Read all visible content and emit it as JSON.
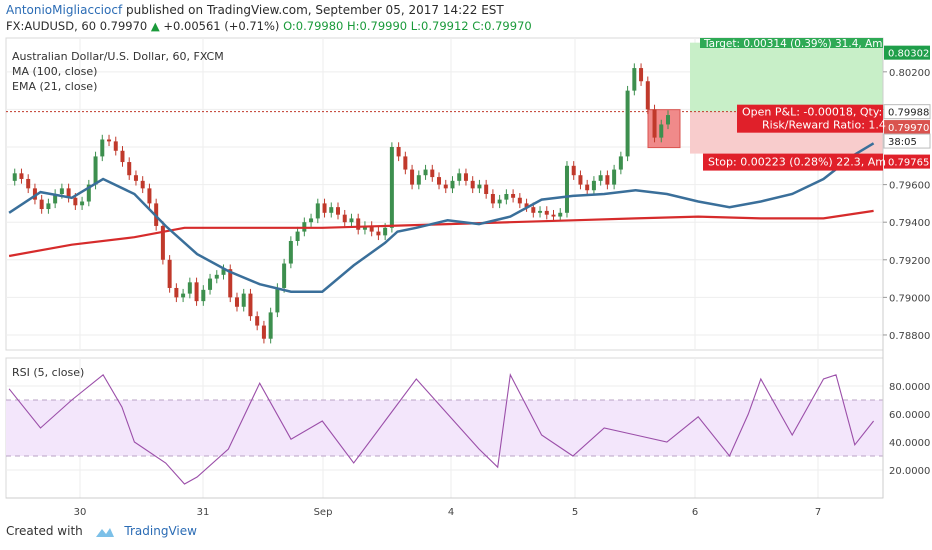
{
  "header": {
    "author": "AntonioMigliacciocf",
    "published_text": "published on TradingView.com, September 05, 2017 14:22 EST",
    "symbol_line": "FX:AUDUSD, 60",
    "last_price": "0.79970",
    "change": "+0.00561 (+0.71%)",
    "ohlc": "O:0.79980 H:0.79990 L:0.79912 C:0.79970"
  },
  "legend": {
    "title": "Australian Dollar/U.S. Dollar, 60, FXCM",
    "ma": "MA (100, close)",
    "ema": "EMA (21, close)",
    "rsi": "RSI (5, close)"
  },
  "position": {
    "target": "Target: 0.00314 (0.39%) 31.4, Am",
    "open_pnl": "Open P&L: -0.00018, Qty:",
    "risk_reward": "Risk/Reward Ratio: 1.4",
    "stop": "Stop: 0.00223 (0.28%) 22.3, Am",
    "entry_price": 0.79988,
    "target_price": 0.80302,
    "stop_price": 0.79765
  },
  "price_axis": {
    "ticks": [
      "0.80200",
      "0.80000",
      "0.79600",
      "0.79400",
      "0.79200",
      "0.79000",
      "0.78800"
    ],
    "labels": [
      {
        "text": "0.80302",
        "kind": "target"
      },
      {
        "text": "0.79988",
        "kind": "entry"
      },
      {
        "text": "0.79970",
        "kind": "last"
      },
      {
        "text": "38:05",
        "kind": "timer"
      },
      {
        "text": "0.79765",
        "kind": "stop"
      }
    ]
  },
  "rsi_axis": {
    "ticks": [
      "80.0000",
      "60.0000",
      "40.0000",
      "20.0000"
    ]
  },
  "time_axis": {
    "labels": [
      "30",
      "31",
      "Sep",
      "4",
      "5",
      "6",
      "7"
    ]
  },
  "footer": {
    "created_with": "Created with",
    "brand": "TradingView"
  },
  "colors": {
    "up": "#3d8f4e",
    "down": "#c0392b",
    "ema": "#3a6f9a",
    "ma": "#d62b2b",
    "rsi": "#9b4fa9",
    "target_zone": "#c8efc8",
    "stop_zone": "#f8cccc"
  },
  "chart_data": {
    "type": "line",
    "title": "Australian Dollar/U.S. Dollar, 60, FXCM",
    "series": [
      {
        "name": "EMA (21, close)",
        "x": [
          0,
          5,
          10,
          15,
          20,
          25,
          30,
          35,
          40,
          45,
          50,
          55,
          60,
          62,
          65,
          70,
          75,
          80,
          85,
          90,
          95,
          100,
          105,
          110,
          115,
          120,
          125,
          130,
          135,
          138
        ],
        "values": [
          0.7945,
          0.7956,
          0.7953,
          0.7963,
          0.7955,
          0.7938,
          0.7923,
          0.7914,
          0.7907,
          0.7903,
          0.7903,
          0.7917,
          0.7929,
          0.7935,
          0.7937,
          0.7941,
          0.7939,
          0.7943,
          0.7952,
          0.7954,
          0.7955,
          0.7957,
          0.7955,
          0.7951,
          0.7948,
          0.7951,
          0.7955,
          0.7963,
          0.7976,
          0.7982
        ]
      },
      {
        "name": "MA (100, close)",
        "x": [
          0,
          10,
          20,
          28,
          30,
          40,
          50,
          60,
          70,
          80,
          90,
          100,
          110,
          120,
          130,
          138
        ],
        "values": [
          0.7922,
          0.7928,
          0.7932,
          0.7937,
          0.7937,
          0.7937,
          0.7937,
          0.7938,
          0.7939,
          0.794,
          0.7941,
          0.7942,
          0.7943,
          0.7942,
          0.7942,
          0.7946
        ]
      },
      {
        "name": "RSI (5, close)",
        "x": [
          0,
          5,
          10,
          15,
          18,
          20,
          25,
          28,
          30,
          35,
          40,
          45,
          50,
          55,
          60,
          65,
          70,
          75,
          78,
          80,
          85,
          90,
          95,
          100,
          105,
          110,
          115,
          118,
          120,
          125,
          130,
          132,
          135,
          138
        ],
        "values": [
          78,
          50,
          70,
          88,
          65,
          40,
          25,
          10,
          15,
          35,
          82,
          42,
          55,
          25,
          55,
          85,
          60,
          35,
          22,
          88,
          45,
          30,
          50,
          45,
          40,
          58,
          30,
          60,
          85,
          45,
          85,
          88,
          38,
          55
        ]
      }
    ],
    "ylim": [
      0.7872,
      0.8038
    ],
    "rsi_ylim": [
      0,
      100
    ],
    "xlabel": "",
    "ylabel": ""
  }
}
